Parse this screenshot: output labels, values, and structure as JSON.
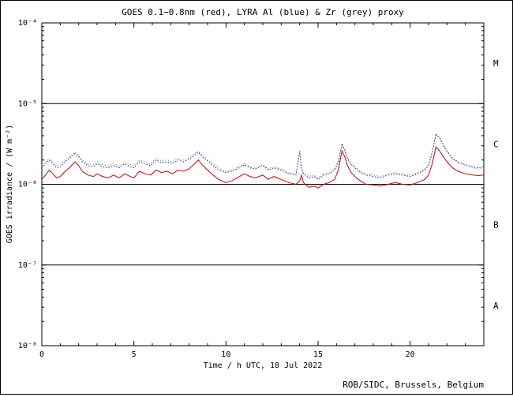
{
  "credit": "ROB/SIDC, Brussels, Belgium",
  "chart_data": {
    "type": "line",
    "title": "GOES 0.1−0.8nm (red), LYRA Al (blue) & Zr (grey) proxy",
    "xlabel": "Time / h UTC, 18 Jul 2022",
    "ylabel": "GOES irradiance / (W m⁻²)",
    "xlim": [
      0,
      24
    ],
    "ylim": [
      1e-08,
      0.0001
    ],
    "grid": false,
    "legend_position": "in-title",
    "x_ticks": [
      {
        "label": "0",
        "value": 0
      },
      {
        "label": "5",
        "value": 5
      },
      {
        "label": "10",
        "value": 10
      },
      {
        "label": "15",
        "value": 15
      },
      {
        "label": "20",
        "value": 20
      }
    ],
    "y_ticks": [
      {
        "label": "10⁻⁴",
        "value": 0.0001
      },
      {
        "label": "10⁻⁵",
        "value": 1e-05
      },
      {
        "label": "10⁻⁶",
        "value": 1e-06
      },
      {
        "label": "10⁻⁷",
        "value": 1e-07
      },
      {
        "label": "10⁻⁸",
        "value": 1e-08
      }
    ],
    "class_boundaries": [
      1e-05,
      1e-06,
      1e-07
    ],
    "class_bands": [
      {
        "label": "M",
        "value": 3.162e-05
      },
      {
        "label": "C",
        "value": 3.162e-06
      },
      {
        "label": "B",
        "value": 3.162e-07
      },
      {
        "label": "A",
        "value": 3.162e-08
      }
    ],
    "value_scale": 1e-06,
    "series": [
      {
        "name": "Zr (grey) proxy",
        "color": "#9a9a9a",
        "dash": "1.5,2",
        "width": 1,
        "points": [
          [
            0,
            1.7
          ],
          [
            0.2,
            1.9
          ],
          [
            0.4,
            2.1
          ],
          [
            0.6,
            1.9
          ],
          [
            0.8,
            1.7
          ],
          [
            1.0,
            1.75
          ],
          [
            1.2,
            1.95
          ],
          [
            1.5,
            2.2
          ],
          [
            1.8,
            2.5
          ],
          [
            2.0,
            2.3
          ],
          [
            2.2,
            2.0
          ],
          [
            2.5,
            1.8
          ],
          [
            2.8,
            1.75
          ],
          [
            3.0,
            1.9
          ],
          [
            3.3,
            1.75
          ],
          [
            3.6,
            1.7
          ],
          [
            3.9,
            1.8
          ],
          [
            4.2,
            1.7
          ],
          [
            4.5,
            1.9
          ],
          [
            4.8,
            1.75
          ],
          [
            5.0,
            1.7
          ],
          [
            5.3,
            2.0
          ],
          [
            5.6,
            1.9
          ],
          [
            5.9,
            1.8
          ],
          [
            6.2,
            2.1
          ],
          [
            6.5,
            1.95
          ],
          [
            6.8,
            2.0
          ],
          [
            7.1,
            1.9
          ],
          [
            7.4,
            2.1
          ],
          [
            7.7,
            2.0
          ],
          [
            8.0,
            2.15
          ],
          [
            8.3,
            2.4
          ],
          [
            8.5,
            2.6
          ],
          [
            8.7,
            2.3
          ],
          [
            9.0,
            2.05
          ],
          [
            9.3,
            1.8
          ],
          [
            9.6,
            1.6
          ],
          [
            10.0,
            1.45
          ],
          [
            10.3,
            1.5
          ],
          [
            10.6,
            1.6
          ],
          [
            11.0,
            1.8
          ],
          [
            11.3,
            1.65
          ],
          [
            11.6,
            1.6
          ],
          [
            12.0,
            1.75
          ],
          [
            12.3,
            1.55
          ],
          [
            12.6,
            1.65
          ],
          [
            13.0,
            1.55
          ],
          [
            13.4,
            1.4
          ],
          [
            13.8,
            1.35
          ],
          [
            14.0,
            2.4
          ],
          [
            14.1,
            1.6
          ],
          [
            14.2,
            1.4
          ],
          [
            14.5,
            1.25
          ],
          [
            14.8,
            1.3
          ],
          [
            15.0,
            1.2
          ],
          [
            15.3,
            1.35
          ],
          [
            15.6,
            1.4
          ],
          [
            15.9,
            1.55
          ],
          [
            16.1,
            1.95
          ],
          [
            16.3,
            3.0
          ],
          [
            16.45,
            2.6
          ],
          [
            16.6,
            2.05
          ],
          [
            16.8,
            1.8
          ],
          [
            17.0,
            1.65
          ],
          [
            17.3,
            1.45
          ],
          [
            17.6,
            1.35
          ],
          [
            18.0,
            1.3
          ],
          [
            18.4,
            1.25
          ],
          [
            18.8,
            1.35
          ],
          [
            19.2,
            1.4
          ],
          [
            19.6,
            1.35
          ],
          [
            20.0,
            1.3
          ],
          [
            20.4,
            1.4
          ],
          [
            20.8,
            1.55
          ],
          [
            21.0,
            1.75
          ],
          [
            21.2,
            2.55
          ],
          [
            21.4,
            4.1
          ],
          [
            21.6,
            3.7
          ],
          [
            21.8,
            3.0
          ],
          [
            22.0,
            2.55
          ],
          [
            22.3,
            2.05
          ],
          [
            22.6,
            1.85
          ],
          [
            23.0,
            1.7
          ],
          [
            23.4,
            1.6
          ],
          [
            23.7,
            1.55
          ],
          [
            24,
            1.6
          ]
        ]
      },
      {
        "name": "LYRA Al (blue) proxy",
        "color": "#2020c0",
        "dash": "1.5,2",
        "width": 1,
        "points": [
          [
            0,
            1.6
          ],
          [
            0.2,
            1.8
          ],
          [
            0.4,
            2.0
          ],
          [
            0.6,
            1.8
          ],
          [
            0.8,
            1.6
          ],
          [
            1.0,
            1.65
          ],
          [
            1.2,
            1.85
          ],
          [
            1.5,
            2.1
          ],
          [
            1.8,
            2.4
          ],
          [
            2.0,
            2.2
          ],
          [
            2.2,
            1.9
          ],
          [
            2.5,
            1.7
          ],
          [
            2.8,
            1.65
          ],
          [
            3.0,
            1.8
          ],
          [
            3.3,
            1.65
          ],
          [
            3.6,
            1.6
          ],
          [
            3.9,
            1.7
          ],
          [
            4.2,
            1.6
          ],
          [
            4.5,
            1.8
          ],
          [
            4.8,
            1.65
          ],
          [
            5.0,
            1.6
          ],
          [
            5.3,
            1.9
          ],
          [
            5.6,
            1.8
          ],
          [
            5.9,
            1.7
          ],
          [
            6.2,
            2.0
          ],
          [
            6.5,
            1.85
          ],
          [
            6.8,
            1.9
          ],
          [
            7.1,
            1.8
          ],
          [
            7.4,
            2.0
          ],
          [
            7.7,
            1.9
          ],
          [
            8.0,
            2.05
          ],
          [
            8.3,
            2.3
          ],
          [
            8.5,
            2.5
          ],
          [
            8.7,
            2.2
          ],
          [
            9.0,
            1.95
          ],
          [
            9.3,
            1.7
          ],
          [
            9.6,
            1.5
          ],
          [
            10.0,
            1.4
          ],
          [
            10.3,
            1.45
          ],
          [
            10.6,
            1.55
          ],
          [
            11.0,
            1.75
          ],
          [
            11.3,
            1.6
          ],
          [
            11.6,
            1.55
          ],
          [
            12.0,
            1.7
          ],
          [
            12.3,
            1.5
          ],
          [
            12.6,
            1.6
          ],
          [
            13.0,
            1.5
          ],
          [
            13.4,
            1.35
          ],
          [
            13.8,
            1.3
          ],
          [
            14.0,
            2.6
          ],
          [
            14.1,
            1.6
          ],
          [
            14.2,
            1.35
          ],
          [
            14.5,
            1.2
          ],
          [
            14.8,
            1.25
          ],
          [
            15.0,
            1.15
          ],
          [
            15.3,
            1.3
          ],
          [
            15.6,
            1.35
          ],
          [
            15.9,
            1.5
          ],
          [
            16.1,
            1.9
          ],
          [
            16.3,
            3.2
          ],
          [
            16.45,
            2.7
          ],
          [
            16.6,
            2.1
          ],
          [
            16.8,
            1.75
          ],
          [
            17.0,
            1.6
          ],
          [
            17.3,
            1.4
          ],
          [
            17.6,
            1.3
          ],
          [
            18.0,
            1.25
          ],
          [
            18.4,
            1.2
          ],
          [
            18.8,
            1.3
          ],
          [
            19.2,
            1.35
          ],
          [
            19.6,
            1.3
          ],
          [
            20.0,
            1.25
          ],
          [
            20.4,
            1.35
          ],
          [
            20.8,
            1.5
          ],
          [
            21.0,
            1.7
          ],
          [
            21.2,
            2.5
          ],
          [
            21.4,
            4.2
          ],
          [
            21.6,
            3.8
          ],
          [
            21.8,
            3.1
          ],
          [
            22.0,
            2.6
          ],
          [
            22.3,
            2.1
          ],
          [
            22.6,
            1.9
          ],
          [
            23.0,
            1.75
          ],
          [
            23.4,
            1.65
          ],
          [
            23.7,
            1.6
          ],
          [
            24,
            1.65
          ]
        ]
      },
      {
        "name": "GOES 0.1-0.8nm (red)",
        "color": "#cc0000",
        "dash": "",
        "width": 1,
        "points": [
          [
            0,
            1.15
          ],
          [
            0.2,
            1.3
          ],
          [
            0.4,
            1.5
          ],
          [
            0.6,
            1.35
          ],
          [
            0.8,
            1.2
          ],
          [
            1.0,
            1.25
          ],
          [
            1.2,
            1.4
          ],
          [
            1.5,
            1.6
          ],
          [
            1.8,
            1.9
          ],
          [
            2.0,
            1.7
          ],
          [
            2.2,
            1.45
          ],
          [
            2.5,
            1.3
          ],
          [
            2.8,
            1.25
          ],
          [
            3.0,
            1.35
          ],
          [
            3.3,
            1.25
          ],
          [
            3.6,
            1.2
          ],
          [
            3.9,
            1.3
          ],
          [
            4.2,
            1.2
          ],
          [
            4.5,
            1.35
          ],
          [
            4.8,
            1.25
          ],
          [
            5.0,
            1.2
          ],
          [
            5.3,
            1.45
          ],
          [
            5.6,
            1.35
          ],
          [
            5.9,
            1.3
          ],
          [
            6.2,
            1.5
          ],
          [
            6.5,
            1.4
          ],
          [
            6.8,
            1.45
          ],
          [
            7.1,
            1.35
          ],
          [
            7.4,
            1.5
          ],
          [
            7.7,
            1.45
          ],
          [
            8.0,
            1.55
          ],
          [
            8.3,
            1.8
          ],
          [
            8.5,
            2.0
          ],
          [
            8.7,
            1.75
          ],
          [
            9.0,
            1.5
          ],
          [
            9.3,
            1.3
          ],
          [
            9.6,
            1.15
          ],
          [
            10.0,
            1.05
          ],
          [
            10.3,
            1.1
          ],
          [
            10.6,
            1.2
          ],
          [
            11.0,
            1.35
          ],
          [
            11.3,
            1.25
          ],
          [
            11.6,
            1.2
          ],
          [
            12.0,
            1.3
          ],
          [
            12.3,
            1.15
          ],
          [
            12.6,
            1.25
          ],
          [
            13.0,
            1.15
          ],
          [
            13.4,
            1.05
          ],
          [
            13.8,
            1.0
          ],
          [
            14.0,
            1.1
          ],
          [
            14.1,
            1.3
          ],
          [
            14.2,
            1.05
          ],
          [
            14.5,
            0.92
          ],
          [
            14.8,
            0.95
          ],
          [
            15.0,
            0.9
          ],
          [
            15.3,
            1.0
          ],
          [
            15.6,
            1.05
          ],
          [
            15.9,
            1.15
          ],
          [
            16.1,
            1.5
          ],
          [
            16.3,
            2.6
          ],
          [
            16.45,
            2.2
          ],
          [
            16.6,
            1.7
          ],
          [
            16.8,
            1.4
          ],
          [
            17.0,
            1.25
          ],
          [
            17.3,
            1.1
          ],
          [
            17.6,
            1.0
          ],
          [
            18.0,
            0.98
          ],
          [
            18.4,
            0.95
          ],
          [
            18.8,
            1.0
          ],
          [
            19.2,
            1.05
          ],
          [
            19.6,
            1.0
          ],
          [
            20.0,
            0.98
          ],
          [
            20.4,
            1.05
          ],
          [
            20.8,
            1.15
          ],
          [
            21.0,
            1.3
          ],
          [
            21.2,
            1.8
          ],
          [
            21.4,
            2.9
          ],
          [
            21.6,
            2.6
          ],
          [
            21.8,
            2.2
          ],
          [
            22.0,
            1.9
          ],
          [
            22.3,
            1.6
          ],
          [
            22.6,
            1.45
          ],
          [
            23.0,
            1.35
          ],
          [
            23.4,
            1.3
          ],
          [
            23.7,
            1.28
          ],
          [
            24,
            1.3
          ]
        ]
      }
    ]
  }
}
